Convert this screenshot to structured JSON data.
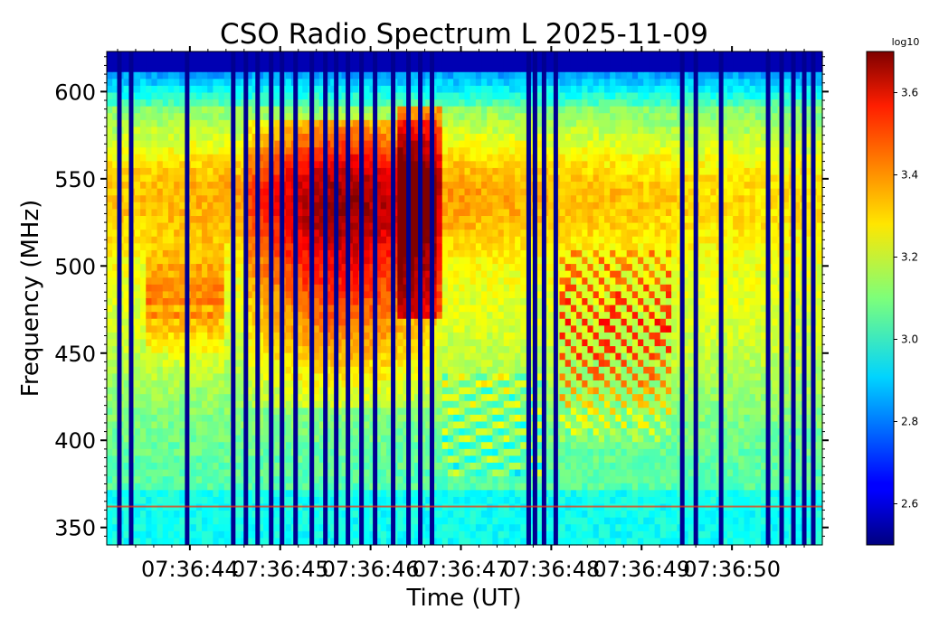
{
  "chart_data": {
    "type": "heatmap",
    "title": "CSO Radio Spectrum L 2025-11-09",
    "xlabel": "Time (UT)",
    "ylabel": "Frequency (MHz)",
    "x_tick_labels": [
      "07:36:44",
      "07:36:45",
      "07:36:46",
      "07:36:47",
      "07:36:48",
      "07:36:49",
      "07:36:50"
    ],
    "x_tick_values": [
      44,
      45,
      46,
      47,
      48,
      49,
      50
    ],
    "x_range": [
      43.08,
      51.0
    ],
    "y_tick_values": [
      350,
      400,
      450,
      500,
      550,
      600
    ],
    "y_tick_labels": [
      "350",
      "400",
      "450",
      "500",
      "550",
      "600"
    ],
    "y_range": [
      340,
      623
    ],
    "colorbar": {
      "label": "log10",
      "range": [
        2.5,
        3.7
      ],
      "tick_values": [
        2.6,
        2.8,
        3.0,
        3.2,
        3.4,
        3.6
      ],
      "tick_labels": [
        "2.6",
        "2.8",
        "3.0",
        "3.2",
        "3.4",
        "3.6"
      ],
      "colormap": "jet"
    },
    "features": {
      "dark_vertical_gap_times": [
        43.22,
        43.35,
        43.97,
        44.48,
        44.62,
        44.75,
        44.9,
        45.02,
        45.17,
        45.35,
        45.5,
        45.62,
        45.75,
        45.9,
        46.05,
        46.25,
        46.42,
        46.55,
        46.68,
        47.75,
        47.82,
        47.92,
        48.05,
        49.45,
        49.6,
        49.88,
        50.4,
        50.55,
        50.68,
        50.8,
        50.9
      ],
      "hot_region": {
        "t_range": [
          44.6,
          46.75
        ],
        "f_range": [
          460,
          585
        ],
        "level": 3.65
      },
      "drifting_bands": {
        "t_range": [
          48.1,
          49.3
        ],
        "f_range": [
          400,
          510
        ],
        "level": 3.6
      },
      "upper_cutoff_mhz": 605
    }
  }
}
